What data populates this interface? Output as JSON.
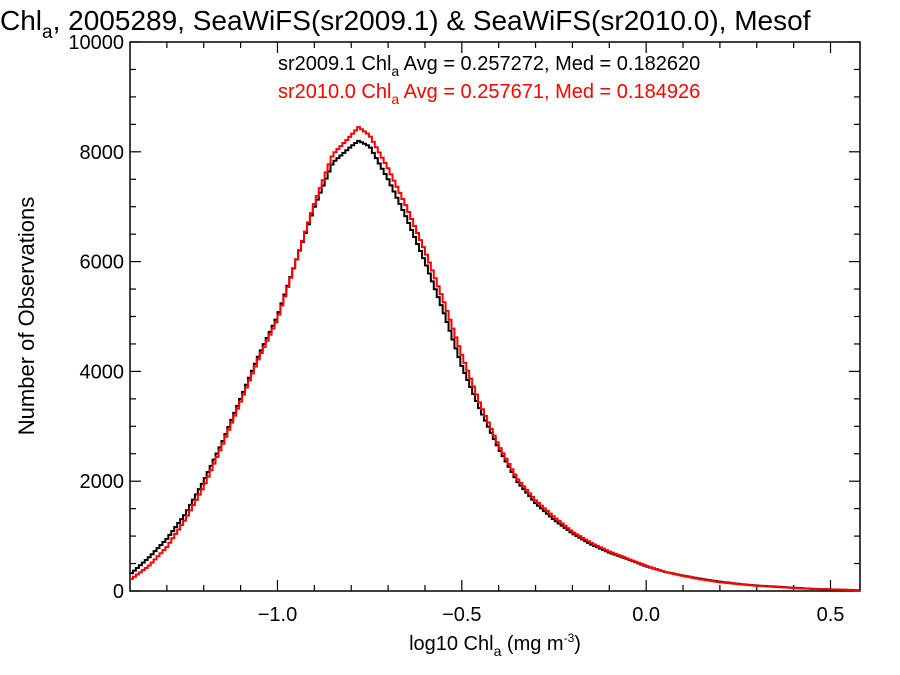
{
  "chart_data": {
    "type": "line",
    "step": true,
    "title": {
      "prefix": "Chl",
      "sub": "a",
      "rest": ", 2005289, SeaWiFS(sr2009.1) & SeaWiFS(sr2010.0), Mesof"
    },
    "xlabel": {
      "prefix": "log10 Chl",
      "sub": "a",
      "units_prefix": " (mg m",
      "units_sup": "-3",
      "units_suffix": ")"
    },
    "ylabel": "Number of Observations",
    "xlim": [
      -1.4,
      0.58
    ],
    "ylim": [
      0,
      10000
    ],
    "xticks": [
      {
        "value": -1.0,
        "label": "−1.0"
      },
      {
        "value": -0.5,
        "label": "−0.5"
      },
      {
        "value": 0.0,
        "label": "0.0"
      },
      {
        "value": 0.5,
        "label": "0.5"
      }
    ],
    "yticks": [
      {
        "value": 0,
        "label": "0"
      },
      {
        "value": 2000,
        "label": "2000"
      },
      {
        "value": 4000,
        "label": "4000"
      },
      {
        "value": 6000,
        "label": "6000"
      },
      {
        "value": 8000,
        "label": "8000"
      },
      {
        "value": 10000,
        "label": "10000"
      }
    ],
    "grid": false,
    "legend_placement": "top-right",
    "annotations": [
      {
        "prefix": "sr2009.1 Chl",
        "sub": "a",
        "rest": " Avg = 0.257272, Med = 0.182620",
        "color": "#000000"
      },
      {
        "prefix": "sr2010.0 Chl",
        "sub": "a",
        "rest": " Avg = 0.257671, Med = 0.184926",
        "color": "#ff0000"
      }
    ],
    "series": [
      {
        "name": "sr2009.1",
        "color": "#000000",
        "x": [
          -1.4,
          -1.35,
          -1.3,
          -1.25,
          -1.2,
          -1.15,
          -1.1,
          -1.05,
          -1.0,
          -0.95,
          -0.9,
          -0.85,
          -0.8,
          -0.78,
          -0.75,
          -0.7,
          -0.65,
          -0.6,
          -0.55,
          -0.5,
          -0.45,
          -0.4,
          -0.35,
          -0.3,
          -0.25,
          -0.2,
          -0.15,
          -0.1,
          -0.05,
          0.0,
          0.05,
          0.1,
          0.15,
          0.2,
          0.25,
          0.3,
          0.35,
          0.4,
          0.45,
          0.5,
          0.55,
          0.58
        ],
        "y": [
          300,
          600,
          950,
          1400,
          2000,
          2700,
          3500,
          4300,
          5000,
          6000,
          7000,
          7800,
          8100,
          8200,
          8100,
          7500,
          6800,
          6000,
          5100,
          4100,
          3300,
          2600,
          2000,
          1600,
          1300,
          1050,
          850,
          700,
          580,
          450,
          350,
          280,
          220,
          170,
          130,
          100,
          80,
          60,
          40,
          30,
          20,
          10
        ]
      },
      {
        "name": "sr2010.0",
        "color": "#ff0000",
        "x": [
          -1.4,
          -1.35,
          -1.3,
          -1.25,
          -1.2,
          -1.15,
          -1.1,
          -1.05,
          -1.0,
          -0.95,
          -0.9,
          -0.85,
          -0.8,
          -0.78,
          -0.75,
          -0.7,
          -0.65,
          -0.6,
          -0.55,
          -0.5,
          -0.45,
          -0.4,
          -0.35,
          -0.3,
          -0.25,
          -0.2,
          -0.15,
          -0.1,
          -0.05,
          0.0,
          0.05,
          0.1,
          0.15,
          0.2,
          0.25,
          0.3,
          0.35,
          0.4,
          0.45,
          0.5,
          0.55,
          0.58
        ],
        "y": [
          200,
          450,
          800,
          1300,
          1900,
          2650,
          3450,
          4250,
          4950,
          6000,
          7050,
          7950,
          8300,
          8450,
          8300,
          7700,
          7000,
          6200,
          5300,
          4300,
          3400,
          2650,
          2050,
          1650,
          1350,
          1080,
          880,
          720,
          590,
          460,
          350,
          275,
          210,
          160,
          125,
          95,
          75,
          55,
          38,
          28,
          18,
          8
        ]
      }
    ]
  }
}
